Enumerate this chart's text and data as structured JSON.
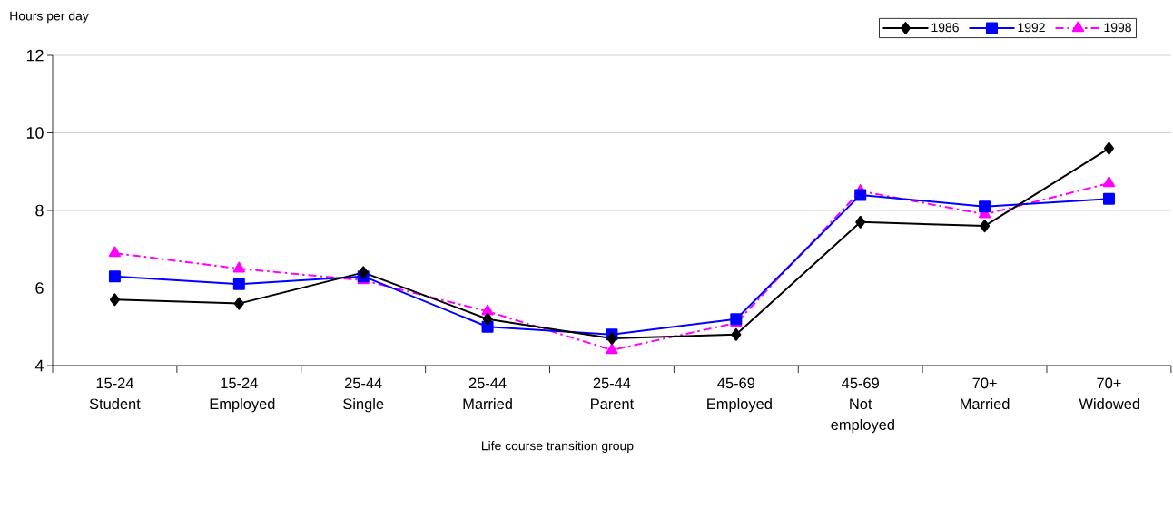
{
  "chart_data": {
    "type": "line",
    "xlabel": "Life course transition group",
    "ylabel": "Hours per day",
    "categories": [
      "15-24 Student",
      "15-24 Employed",
      "25-44 Single",
      "25-44 Married",
      "25-44 Parent",
      "45-69 Employed",
      "45-69 Not employed",
      "70+ Married",
      "70+ Widowed"
    ],
    "series": [
      {
        "name": "1986",
        "color": "#000000",
        "marker": "diamond",
        "line_style": "solid",
        "values": [
          5.7,
          5.6,
          6.4,
          5.2,
          4.7,
          4.8,
          7.7,
          7.6,
          9.6
        ]
      },
      {
        "name": "1992",
        "color": "#0000ff",
        "marker": "square",
        "line_style": "solid",
        "values": [
          6.3,
          6.1,
          6.3,
          5.0,
          4.8,
          5.2,
          8.4,
          8.1,
          8.3
        ]
      },
      {
        "name": "1998",
        "color": "#ff00ff",
        "marker": "triangle",
        "line_style": "dashdot",
        "values": [
          6.9,
          6.5,
          6.2,
          5.4,
          4.4,
          5.1,
          8.5,
          7.9,
          8.7
        ]
      }
    ],
    "ylim": [
      4,
      12
    ],
    "yticks": [
      4,
      6,
      8,
      10,
      12
    ],
    "grid": "y",
    "legend": "top right"
  }
}
